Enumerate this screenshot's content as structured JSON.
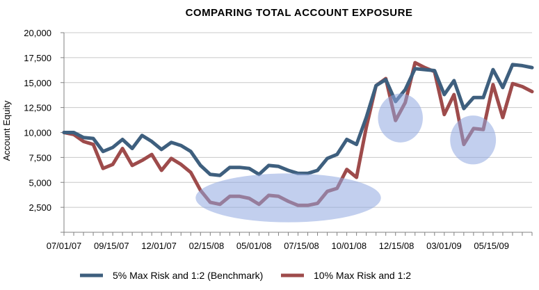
{
  "chart_data": {
    "type": "line",
    "title": "COMPARING TOTAL ACCOUNT EXPOSURE",
    "ylabel": "Account Equity",
    "xlabel": "",
    "ylim": [
      0,
      20000
    ],
    "yticks": [
      0,
      2500,
      5000,
      7500,
      10000,
      12500,
      15000,
      17500,
      20000
    ],
    "ytick_labels": [
      "",
      "2,500",
      "5,000",
      "7,500",
      "10,000",
      "12,500",
      "15,000",
      "17,500",
      "20,000"
    ],
    "xtick_labels": [
      "07/01/07",
      "09/15/07",
      "12/01/07",
      "02/15/08",
      "05/01/08",
      "07/15/08",
      "10/01/08",
      "12/15/08",
      "03/01/09",
      "05/15/09"
    ],
    "grid": "horizontal",
    "legend_position": "bottom",
    "series": [
      {
        "name": "5% Max Risk and 1:2 (Benchmark)",
        "color": "#3e5f7e",
        "values": [
          10000,
          10000,
          9500,
          9400,
          8100,
          8500,
          9300,
          8400,
          9700,
          9100,
          8300,
          9000,
          8700,
          8100,
          6700,
          5800,
          5700,
          6500,
          6500,
          6400,
          5800,
          6700,
          6600,
          6200,
          5900,
          5900,
          6200,
          7400,
          7800,
          9300,
          8800,
          11500,
          14700,
          15300,
          13100,
          14300,
          16400,
          16300,
          16200,
          13800,
          15200,
          12400,
          13500,
          13500,
          16300,
          14500,
          16800,
          16700,
          16500
        ]
      },
      {
        "name": "10% Max Risk and 1:2",
        "color": "#9e4b4b",
        "values": [
          10000,
          9800,
          9100,
          8800,
          6400,
          6800,
          8400,
          6700,
          7200,
          7800,
          6200,
          7400,
          6800,
          6000,
          4200,
          3000,
          2800,
          3600,
          3600,
          3400,
          2800,
          3700,
          3600,
          3100,
          2700,
          2700,
          2900,
          4100,
          4400,
          6300,
          5500,
          10500,
          14700,
          15400,
          11200,
          13000,
          17000,
          16500,
          16100,
          11800,
          13800,
          8800,
          10400,
          10300,
          14800,
          11500,
          14900,
          14600,
          14100
        ]
      }
    ],
    "highlights": [
      {
        "shape": "ellipse",
        "x_range": [
          13.5,
          32.5
        ],
        "y_range": [
          1000,
          5900
        ]
      },
      {
        "shape": "circle",
        "x_range": [
          32.2,
          36.8
        ],
        "y_range": [
          9000,
          13900
        ]
      },
      {
        "shape": "circle",
        "x_range": [
          39.6,
          44.3
        ],
        "y_range": [
          6800,
          11700
        ]
      }
    ],
    "highlight_color": "#8fa8e0"
  }
}
